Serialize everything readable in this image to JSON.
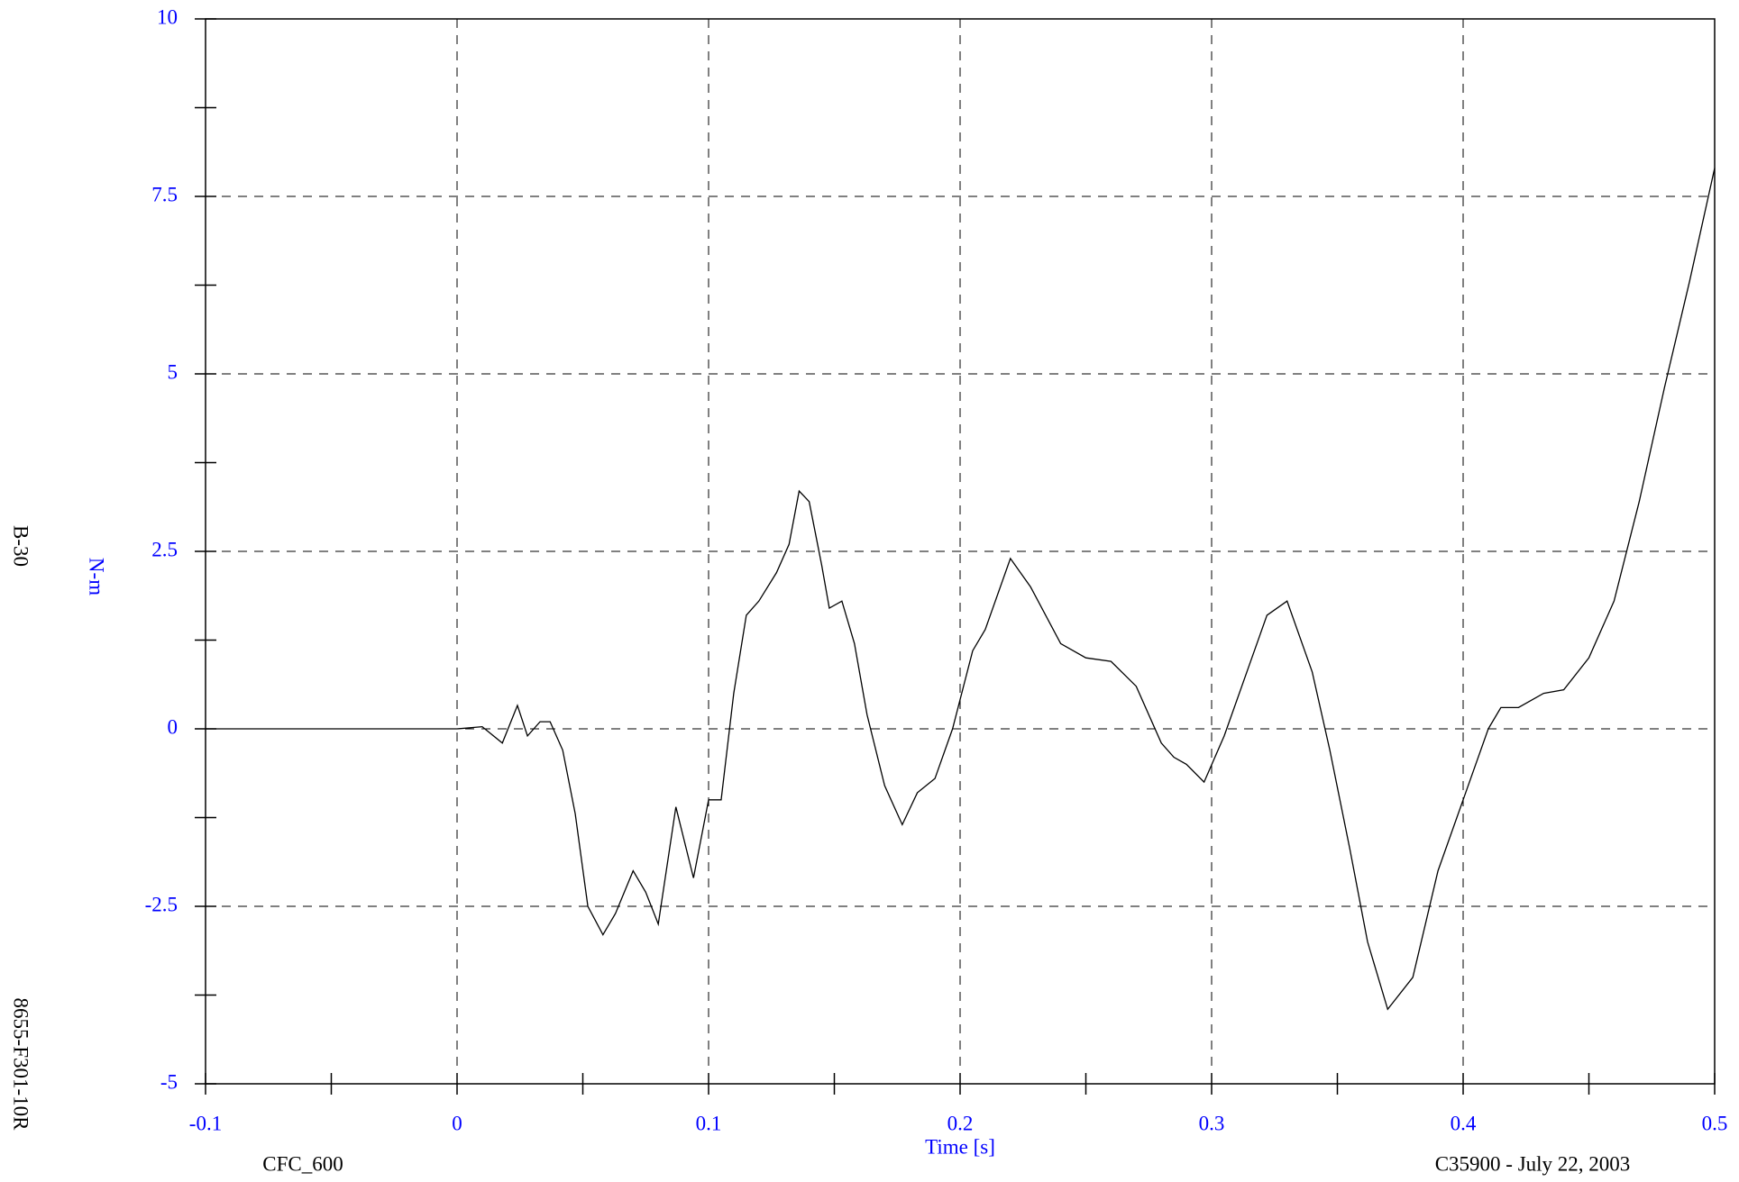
{
  "chart_data": {
    "type": "line",
    "xlabel": "Time [s]",
    "ylabel": "N-m",
    "annotations": [
      "B-30",
      "8655-F301-10R",
      "CFC_600",
      "C35900 - July 22, 2003"
    ],
    "xlim": [
      -0.1,
      0.5
    ],
    "xticks": [
      -0.1,
      0,
      0.1,
      0.2,
      0.3,
      0.4,
      0.5
    ],
    "ylim": [
      -5,
      10
    ],
    "yticks": [
      -5,
      -2.5,
      0,
      2.5,
      5,
      7.5,
      10
    ],
    "grid": true,
    "series": [
      {
        "color": "#000000",
        "x": [
          -0.1,
          0.0,
          0.01,
          0.018,
          0.024,
          0.028,
          0.033,
          0.037,
          0.042,
          0.047,
          0.052,
          0.058,
          0.063,
          0.07,
          0.075,
          0.08,
          0.087,
          0.094,
          0.1,
          0.105,
          0.11,
          0.115,
          0.12,
          0.127,
          0.132,
          0.136,
          0.14,
          0.145,
          0.148,
          0.153,
          0.158,
          0.163,
          0.17,
          0.177,
          0.183,
          0.19,
          0.197,
          0.205,
          0.21,
          0.22,
          0.228,
          0.24,
          0.25,
          0.26,
          0.27,
          0.28,
          0.285,
          0.29,
          0.297,
          0.305,
          0.315,
          0.322,
          0.33,
          0.34,
          0.347,
          0.355,
          0.362,
          0.37,
          0.38,
          0.39,
          0.4,
          0.41,
          0.415,
          0.422,
          0.432,
          0.44,
          0.45,
          0.46,
          0.47,
          0.48,
          0.49,
          0.5
        ],
        "values": [
          0,
          0,
          0.03,
          -0.2,
          0.33,
          -0.1,
          0.1,
          0.1,
          -0.3,
          -1.2,
          -2.5,
          -2.9,
          -2.6,
          -2.0,
          -2.3,
          -2.75,
          -1.1,
          -2.1,
          -1.0,
          -1.0,
          0.5,
          1.6,
          1.8,
          2.2,
          2.6,
          3.35,
          3.2,
          2.3,
          1.7,
          1.8,
          1.2,
          0.2,
          -0.8,
          -1.35,
          -0.9,
          -0.7,
          0.0,
          1.1,
          1.4,
          2.4,
          2.0,
          1.2,
          1.0,
          0.95,
          0.6,
          -0.2,
          -0.4,
          -0.5,
          -0.75,
          -0.1,
          0.9,
          1.6,
          1.8,
          0.8,
          -0.3,
          -1.7,
          -3.0,
          -3.95,
          -3.5,
          -2.0,
          -1.0,
          0.0,
          0.3,
          0.3,
          0.5,
          0.55,
          1.0,
          1.8,
          3.2,
          4.8,
          6.3,
          7.9
        ]
      }
    ]
  }
}
